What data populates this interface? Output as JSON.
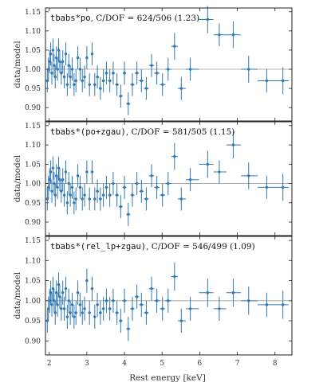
{
  "chart_data": {
    "type": "scatter",
    "xlabel": "Rest energy [keV]",
    "ylabel": "data/model",
    "xlim": [
      1.9,
      8.45
    ],
    "ylim": [
      0.865,
      1.16
    ],
    "xticks": [
      "2",
      "3",
      "4",
      "5",
      "6",
      "7",
      "8"
    ],
    "xtick_values": [
      2,
      3,
      4,
      5,
      6,
      7,
      8
    ],
    "yticks": [
      "0.90",
      "0.95",
      "1.00",
      "1.05",
      "1.10",
      "1.15"
    ],
    "ytick_values": [
      0.9,
      0.95,
      1.0,
      1.05,
      1.1,
      1.15
    ],
    "reference_line": 1.0,
    "marker_color": "#2f78b3",
    "panels": [
      {
        "model": "tbabs*po",
        "stat_text": ", C/DOF = 624/506 (1.23)",
        "points": [
          [
            1.95,
            0.97
          ],
          [
            1.98,
            1.0
          ],
          [
            2.01,
            1.02
          ],
          [
            2.04,
            1.04
          ],
          [
            2.07,
            0.99
          ],
          [
            2.1,
            1.05
          ],
          [
            2.13,
            1.01
          ],
          [
            2.16,
            0.98
          ],
          [
            2.19,
            1.03
          ],
          [
            2.22,
            1.0
          ],
          [
            2.25,
            1.05
          ],
          [
            2.28,
            1.02
          ],
          [
            2.32,
            0.99
          ],
          [
            2.36,
            1.02
          ],
          [
            2.4,
            0.98
          ],
          [
            2.44,
            1.04
          ],
          [
            2.48,
            0.96
          ],
          [
            2.52,
            1.01
          ],
          [
            2.56,
            0.98
          ],
          [
            2.61,
            1.0
          ],
          [
            2.66,
            0.96
          ],
          [
            2.71,
            0.97
          ],
          [
            2.76,
            1.03
          ],
          [
            2.82,
            1.0
          ],
          [
            2.88,
            0.97
          ],
          [
            2.94,
            0.98
          ],
          [
            3.0,
            1.03
          ],
          [
            3.07,
            0.96
          ],
          [
            3.14,
            1.04
          ],
          [
            3.21,
            0.96
          ],
          [
            3.28,
            0.98
          ],
          [
            3.36,
            0.95
          ],
          [
            3.44,
            0.97
          ],
          [
            3.52,
            0.99
          ],
          [
            3.61,
            0.97
          ],
          [
            3.7,
            0.99
          ],
          [
            3.8,
            0.96
          ],
          [
            3.9,
            0.93
          ],
          [
            4.0,
            0.99
          ],
          [
            4.1,
            0.91
          ],
          [
            4.21,
            0.96
          ],
          [
            4.33,
            0.99
          ],
          [
            4.45,
            0.97
          ],
          [
            4.58,
            0.95
          ],
          [
            4.72,
            1.01
          ],
          [
            4.86,
            0.99
          ],
          [
            5.01,
            0.96
          ],
          [
            5.16,
            1.0
          ],
          [
            5.33,
            1.06
          ],
          [
            5.51,
            0.95
          ],
          [
            5.75,
            1.0
          ],
          [
            6.21,
            1.13
          ],
          [
            6.52,
            1.09
          ],
          [
            6.89,
            1.09
          ],
          [
            7.3,
            1.0
          ],
          [
            7.78,
            0.97
          ],
          [
            8.21,
            0.97
          ]
        ],
        "yerrs": [
          0.03,
          0.03,
          0.03,
          0.03,
          0.03,
          0.03,
          0.03,
          0.03,
          0.03,
          0.03,
          0.03,
          0.03,
          0.03,
          0.03,
          0.03,
          0.03,
          0.03,
          0.03,
          0.03,
          0.03,
          0.03,
          0.03,
          0.03,
          0.03,
          0.03,
          0.03,
          0.03,
          0.03,
          0.03,
          0.03,
          0.03,
          0.03,
          0.03,
          0.03,
          0.03,
          0.03,
          0.03,
          0.03,
          0.03,
          0.03,
          0.03,
          0.03,
          0.03,
          0.03,
          0.03,
          0.03,
          0.03,
          0.03,
          0.035,
          0.03,
          0.03,
          0.035,
          0.03,
          0.035,
          0.035,
          0.03,
          0.035
        ]
      },
      {
        "model": "tbabs*(po+zgau)",
        "stat_text": ", C/DOF = 581/505 (1.15)",
        "points": [
          [
            1.95,
            0.96
          ],
          [
            1.98,
            0.99
          ],
          [
            2.01,
            1.01
          ],
          [
            2.04,
            1.03
          ],
          [
            2.07,
            0.98
          ],
          [
            2.1,
            1.04
          ],
          [
            2.13,
            1.0
          ],
          [
            2.16,
            0.97
          ],
          [
            2.19,
            1.02
          ],
          [
            2.22,
            0.99
          ],
          [
            2.25,
            1.04
          ],
          [
            2.28,
            1.01
          ],
          [
            2.32,
            0.98
          ],
          [
            2.36,
            1.01
          ],
          [
            2.4,
            0.97
          ],
          [
            2.44,
            1.03
          ],
          [
            2.48,
            0.95
          ],
          [
            2.52,
            1.0
          ],
          [
            2.56,
            0.97
          ],
          [
            2.61,
            0.99
          ],
          [
            2.66,
            0.95
          ],
          [
            2.71,
            0.96
          ],
          [
            2.76,
            1.02
          ],
          [
            2.82,
            0.99
          ],
          [
            2.88,
            0.96
          ],
          [
            2.94,
            0.97
          ],
          [
            3.0,
            1.03
          ],
          [
            3.07,
            0.96
          ],
          [
            3.14,
            1.03
          ],
          [
            3.21,
            0.96
          ],
          [
            3.28,
            0.98
          ],
          [
            3.36,
            0.96
          ],
          [
            3.44,
            0.97
          ],
          [
            3.52,
            0.99
          ],
          [
            3.61,
            0.97
          ],
          [
            3.7,
            1.0
          ],
          [
            3.8,
            0.97
          ],
          [
            3.9,
            0.94
          ],
          [
            4.0,
            0.99
          ],
          [
            4.1,
            0.92
          ],
          [
            4.21,
            0.97
          ],
          [
            4.33,
            1.0
          ],
          [
            4.45,
            0.98
          ],
          [
            4.58,
            0.96
          ],
          [
            4.72,
            1.02
          ],
          [
            4.86,
            0.99
          ],
          [
            5.01,
            0.97
          ],
          [
            5.16,
            1.0
          ],
          [
            5.33,
            1.07
          ],
          [
            5.51,
            0.96
          ],
          [
            5.75,
            1.01
          ],
          [
            6.21,
            1.05
          ],
          [
            6.52,
            1.03
          ],
          [
            6.89,
            1.1
          ],
          [
            7.3,
            1.02
          ],
          [
            7.78,
            0.99
          ],
          [
            8.21,
            0.99
          ]
        ],
        "yerrs": [
          0.03,
          0.03,
          0.03,
          0.03,
          0.03,
          0.03,
          0.03,
          0.03,
          0.03,
          0.03,
          0.03,
          0.03,
          0.03,
          0.03,
          0.03,
          0.03,
          0.03,
          0.03,
          0.03,
          0.03,
          0.03,
          0.03,
          0.03,
          0.03,
          0.03,
          0.03,
          0.03,
          0.03,
          0.03,
          0.03,
          0.03,
          0.03,
          0.03,
          0.03,
          0.03,
          0.03,
          0.03,
          0.03,
          0.03,
          0.03,
          0.03,
          0.03,
          0.03,
          0.03,
          0.03,
          0.03,
          0.03,
          0.03,
          0.035,
          0.03,
          0.03,
          0.035,
          0.03,
          0.035,
          0.035,
          0.03,
          0.035
        ]
      },
      {
        "model": "tbabs*(rel_lp+zgau)",
        "stat_text": ", C/DOF = 546/499 (1.09)",
        "points": [
          [
            1.95,
            0.95
          ],
          [
            1.98,
            0.98
          ],
          [
            2.01,
            1.0
          ],
          [
            2.04,
            1.02
          ],
          [
            2.07,
            0.99
          ],
          [
            2.1,
            1.03
          ],
          [
            2.13,
            1.0
          ],
          [
            2.16,
            0.97
          ],
          [
            2.19,
            1.02
          ],
          [
            2.22,
            0.99
          ],
          [
            2.25,
            1.04
          ],
          [
            2.28,
            1.01
          ],
          [
            2.32,
            0.98
          ],
          [
            2.36,
            1.02
          ],
          [
            2.4,
            0.98
          ],
          [
            2.44,
            1.03
          ],
          [
            2.48,
            0.96
          ],
          [
            2.52,
            1.0
          ],
          [
            2.56,
            0.97
          ],
          [
            2.61,
            0.99
          ],
          [
            2.66,
            0.96
          ],
          [
            2.71,
            0.97
          ],
          [
            2.76,
            1.02
          ],
          [
            2.82,
            0.99
          ],
          [
            2.88,
            0.97
          ],
          [
            2.94,
            0.98
          ],
          [
            3.0,
            1.05
          ],
          [
            3.07,
            0.97
          ],
          [
            3.14,
            1.03
          ],
          [
            3.21,
            0.96
          ],
          [
            3.28,
            0.99
          ],
          [
            3.36,
            0.97
          ],
          [
            3.44,
            0.98
          ],
          [
            3.52,
            1.0
          ],
          [
            3.61,
            0.98
          ],
          [
            3.7,
            1.0
          ],
          [
            3.8,
            0.97
          ],
          [
            3.9,
            0.95
          ],
          [
            4.0,
            1.0
          ],
          [
            4.1,
            0.93
          ],
          [
            4.21,
            0.98
          ],
          [
            4.33,
            1.01
          ],
          [
            4.45,
            0.99
          ],
          [
            4.58,
            0.97
          ],
          [
            4.72,
            1.03
          ],
          [
            4.86,
            1.0
          ],
          [
            5.01,
            0.98
          ],
          [
            5.16,
            1.0
          ],
          [
            5.33,
            1.06
          ],
          [
            5.51,
            0.95
          ],
          [
            5.75,
            0.98
          ],
          [
            6.21,
            1.02
          ],
          [
            6.52,
            0.98
          ],
          [
            6.89,
            1.02
          ],
          [
            7.3,
            1.0
          ],
          [
            7.78,
            0.99
          ],
          [
            8.21,
            0.99
          ]
        ],
        "yerrs": [
          0.03,
          0.03,
          0.03,
          0.03,
          0.03,
          0.03,
          0.03,
          0.03,
          0.03,
          0.03,
          0.03,
          0.03,
          0.03,
          0.03,
          0.03,
          0.03,
          0.03,
          0.03,
          0.03,
          0.03,
          0.03,
          0.03,
          0.03,
          0.03,
          0.03,
          0.03,
          0.03,
          0.03,
          0.03,
          0.03,
          0.03,
          0.03,
          0.03,
          0.03,
          0.03,
          0.03,
          0.03,
          0.03,
          0.03,
          0.03,
          0.03,
          0.03,
          0.03,
          0.03,
          0.03,
          0.03,
          0.03,
          0.03,
          0.035,
          0.03,
          0.03,
          0.035,
          0.03,
          0.035,
          0.035,
          0.03,
          0.035
        ]
      }
    ]
  }
}
